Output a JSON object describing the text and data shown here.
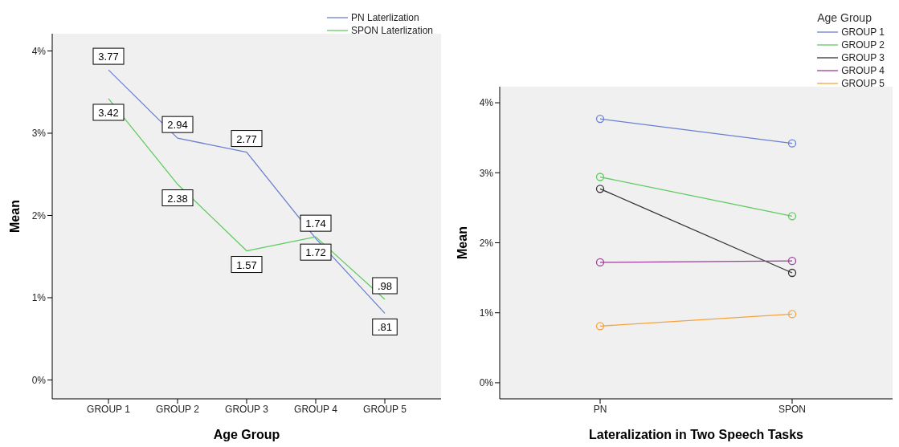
{
  "chart_data": [
    {
      "type": "line",
      "xlabel": "Age Group",
      "ylabel": "Mean",
      "categories": [
        "GROUP 1",
        "GROUP 2",
        "GROUP 3",
        "GROUP 4",
        "GROUP 5"
      ],
      "ylim": [
        -0.23,
        4.21
      ],
      "yticks": [
        {
          "value": 0,
          "label": "0%"
        },
        {
          "value": 1,
          "label": "1%"
        },
        {
          "value": 2,
          "label": "2%"
        },
        {
          "value": 3,
          "label": "3%"
        },
        {
          "value": 4,
          "label": "4%"
        }
      ],
      "legend": "top right",
      "marker": "none",
      "series": [
        {
          "name": "PN Laterlization",
          "color": "#6a7fd0",
          "values": [
            3.77,
            2.94,
            2.77,
            1.72,
            0.81
          ],
          "value_labels": [
            "3.77",
            "2.94",
            "2.77",
            "1.72",
            ".81"
          ]
        },
        {
          "name": "SPON Laterlization",
          "color": "#5fcc5f",
          "values": [
            3.42,
            2.38,
            1.57,
            1.74,
            0.98
          ],
          "value_labels": [
            "3.42",
            "2.38",
            "1.57",
            "1.74",
            ".98"
          ]
        }
      ]
    },
    {
      "type": "line",
      "xlabel": "Lateralization in Two Speech Tasks",
      "ylabel": "Mean",
      "categories": [
        "PN",
        "SPON"
      ],
      "ylim": [
        -0.23,
        4.23
      ],
      "yticks": [
        {
          "value": 0,
          "label": "0%"
        },
        {
          "value": 1,
          "label": "1%"
        },
        {
          "value": 2,
          "label": "2%"
        },
        {
          "value": 3,
          "label": "3%"
        },
        {
          "value": 4,
          "label": "4%"
        }
      ],
      "legend": "top right",
      "legend_title": "Age Group",
      "marker": "circle",
      "series": [
        {
          "name": "GROUP 1",
          "color": "#6a7fd0",
          "values": [
            3.77,
            3.42
          ]
        },
        {
          "name": "GROUP 2",
          "color": "#5fcc5f",
          "values": [
            2.94,
            2.38
          ]
        },
        {
          "name": "GROUP 3",
          "color": "#333333",
          "values": [
            2.77,
            1.57
          ]
        },
        {
          "name": "GROUP 4",
          "color": "#9a3f9a",
          "values": [
            1.72,
            1.74
          ]
        },
        {
          "name": "GROUP 5",
          "color": "#f5a33a",
          "values": [
            0.81,
            0.98
          ]
        }
      ]
    }
  ]
}
